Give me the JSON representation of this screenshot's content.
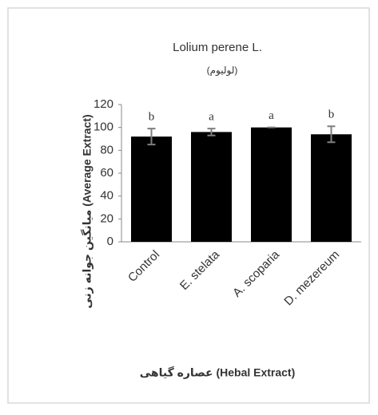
{
  "chart_data": {
    "type": "bar",
    "title": "Lolium perene L.",
    "subtitle": "(لولیوم)",
    "y_label": "میانگین جوانه زنی (Average Extract)",
    "x_label": "عصاره گیاهی (Hebal Extract)",
    "categories": [
      "Control",
      "E. stelata",
      "A. scoparia",
      "D. mezereum"
    ],
    "values": [
      92,
      96,
      100,
      94
    ],
    "errors": [
      7,
      3,
      0,
      7
    ],
    "significance_labels": [
      "b",
      "a",
      "a",
      "b"
    ],
    "color": "#000000",
    "ylim": [
      0,
      120
    ],
    "yticks": [
      0,
      20,
      40,
      60,
      80,
      100,
      120
    ],
    "grid": false
  }
}
